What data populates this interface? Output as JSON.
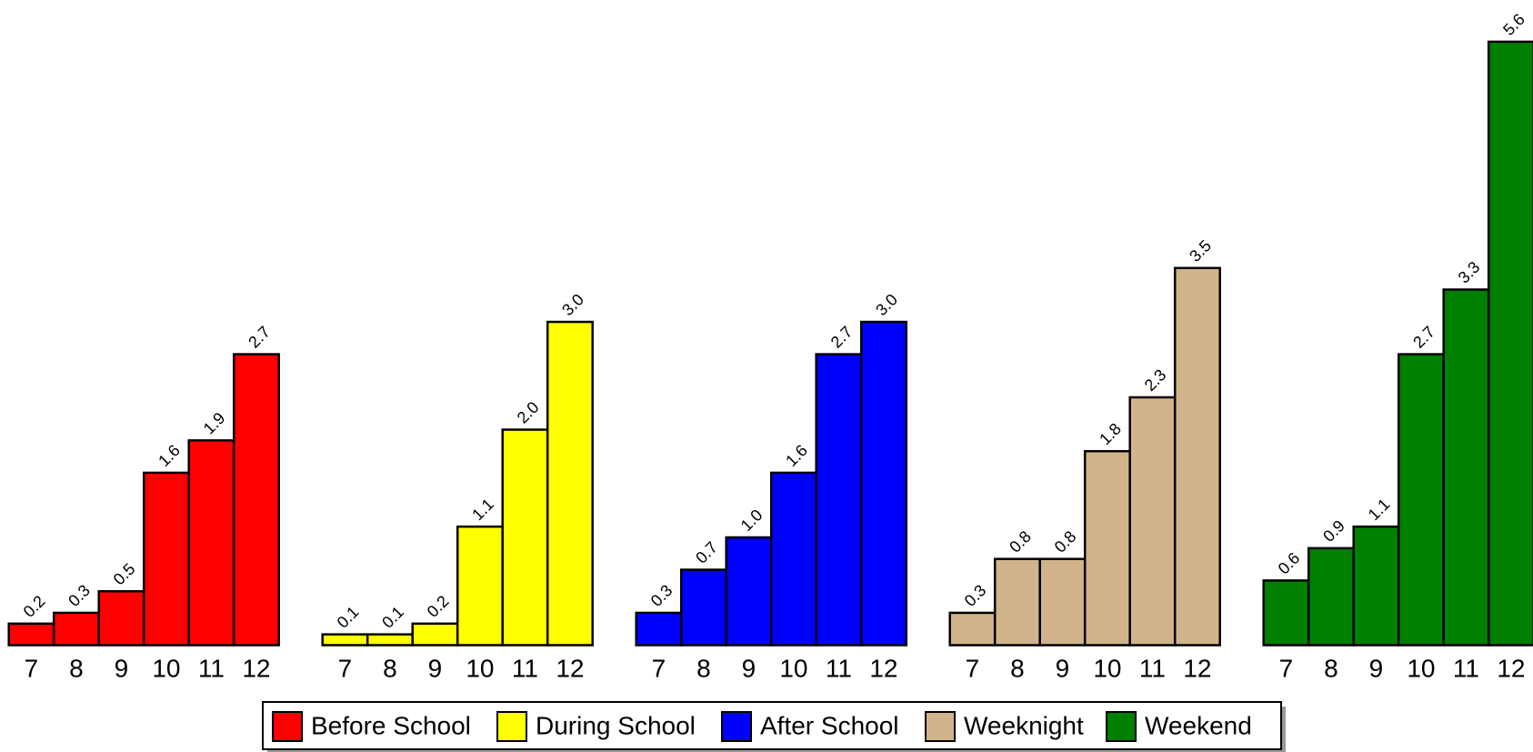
{
  "chart_data": {
    "type": "bar",
    "categories": [
      "7",
      "8",
      "9",
      "10",
      "11",
      "12"
    ],
    "series": [
      {
        "name": "Before School",
        "color": "#ff0000",
        "values": [
          0.2,
          0.3,
          0.5,
          1.6,
          1.9,
          2.7
        ],
        "value_labels": [
          "0.2",
          "0.3",
          "0.5",
          "1.6",
          "1.9",
          "2.7"
        ]
      },
      {
        "name": "During School",
        "color": "#ffff00",
        "values": [
          0.1,
          0.1,
          0.2,
          1.1,
          2.0,
          3.0
        ],
        "value_labels": [
          "0.1",
          "0.1",
          "0.2",
          "1.1",
          "2.0",
          "3.0"
        ]
      },
      {
        "name": "After School",
        "color": "#0000ff",
        "values": [
          0.3,
          0.7,
          1.0,
          1.6,
          2.7,
          3.0
        ],
        "value_labels": [
          "0.3",
          "0.7",
          "1.0",
          "1.6",
          "2.7",
          "3.0"
        ]
      },
      {
        "name": "Weeknight",
        "color": "#d2b48c",
        "values": [
          0.3,
          0.8,
          0.8,
          1.8,
          2.3,
          3.5
        ],
        "value_labels": [
          "0.3",
          "0.8",
          "0.8",
          "1.8",
          "2.3",
          "3.5"
        ]
      },
      {
        "name": "Weekend",
        "color": "#008000",
        "values": [
          0.6,
          0.9,
          1.1,
          2.7,
          3.3,
          5.6
        ],
        "value_labels": [
          "0.6",
          "0.9",
          "1.1",
          "2.7",
          "3.3",
          "5.6"
        ]
      }
    ],
    "legend": "bottom"
  }
}
